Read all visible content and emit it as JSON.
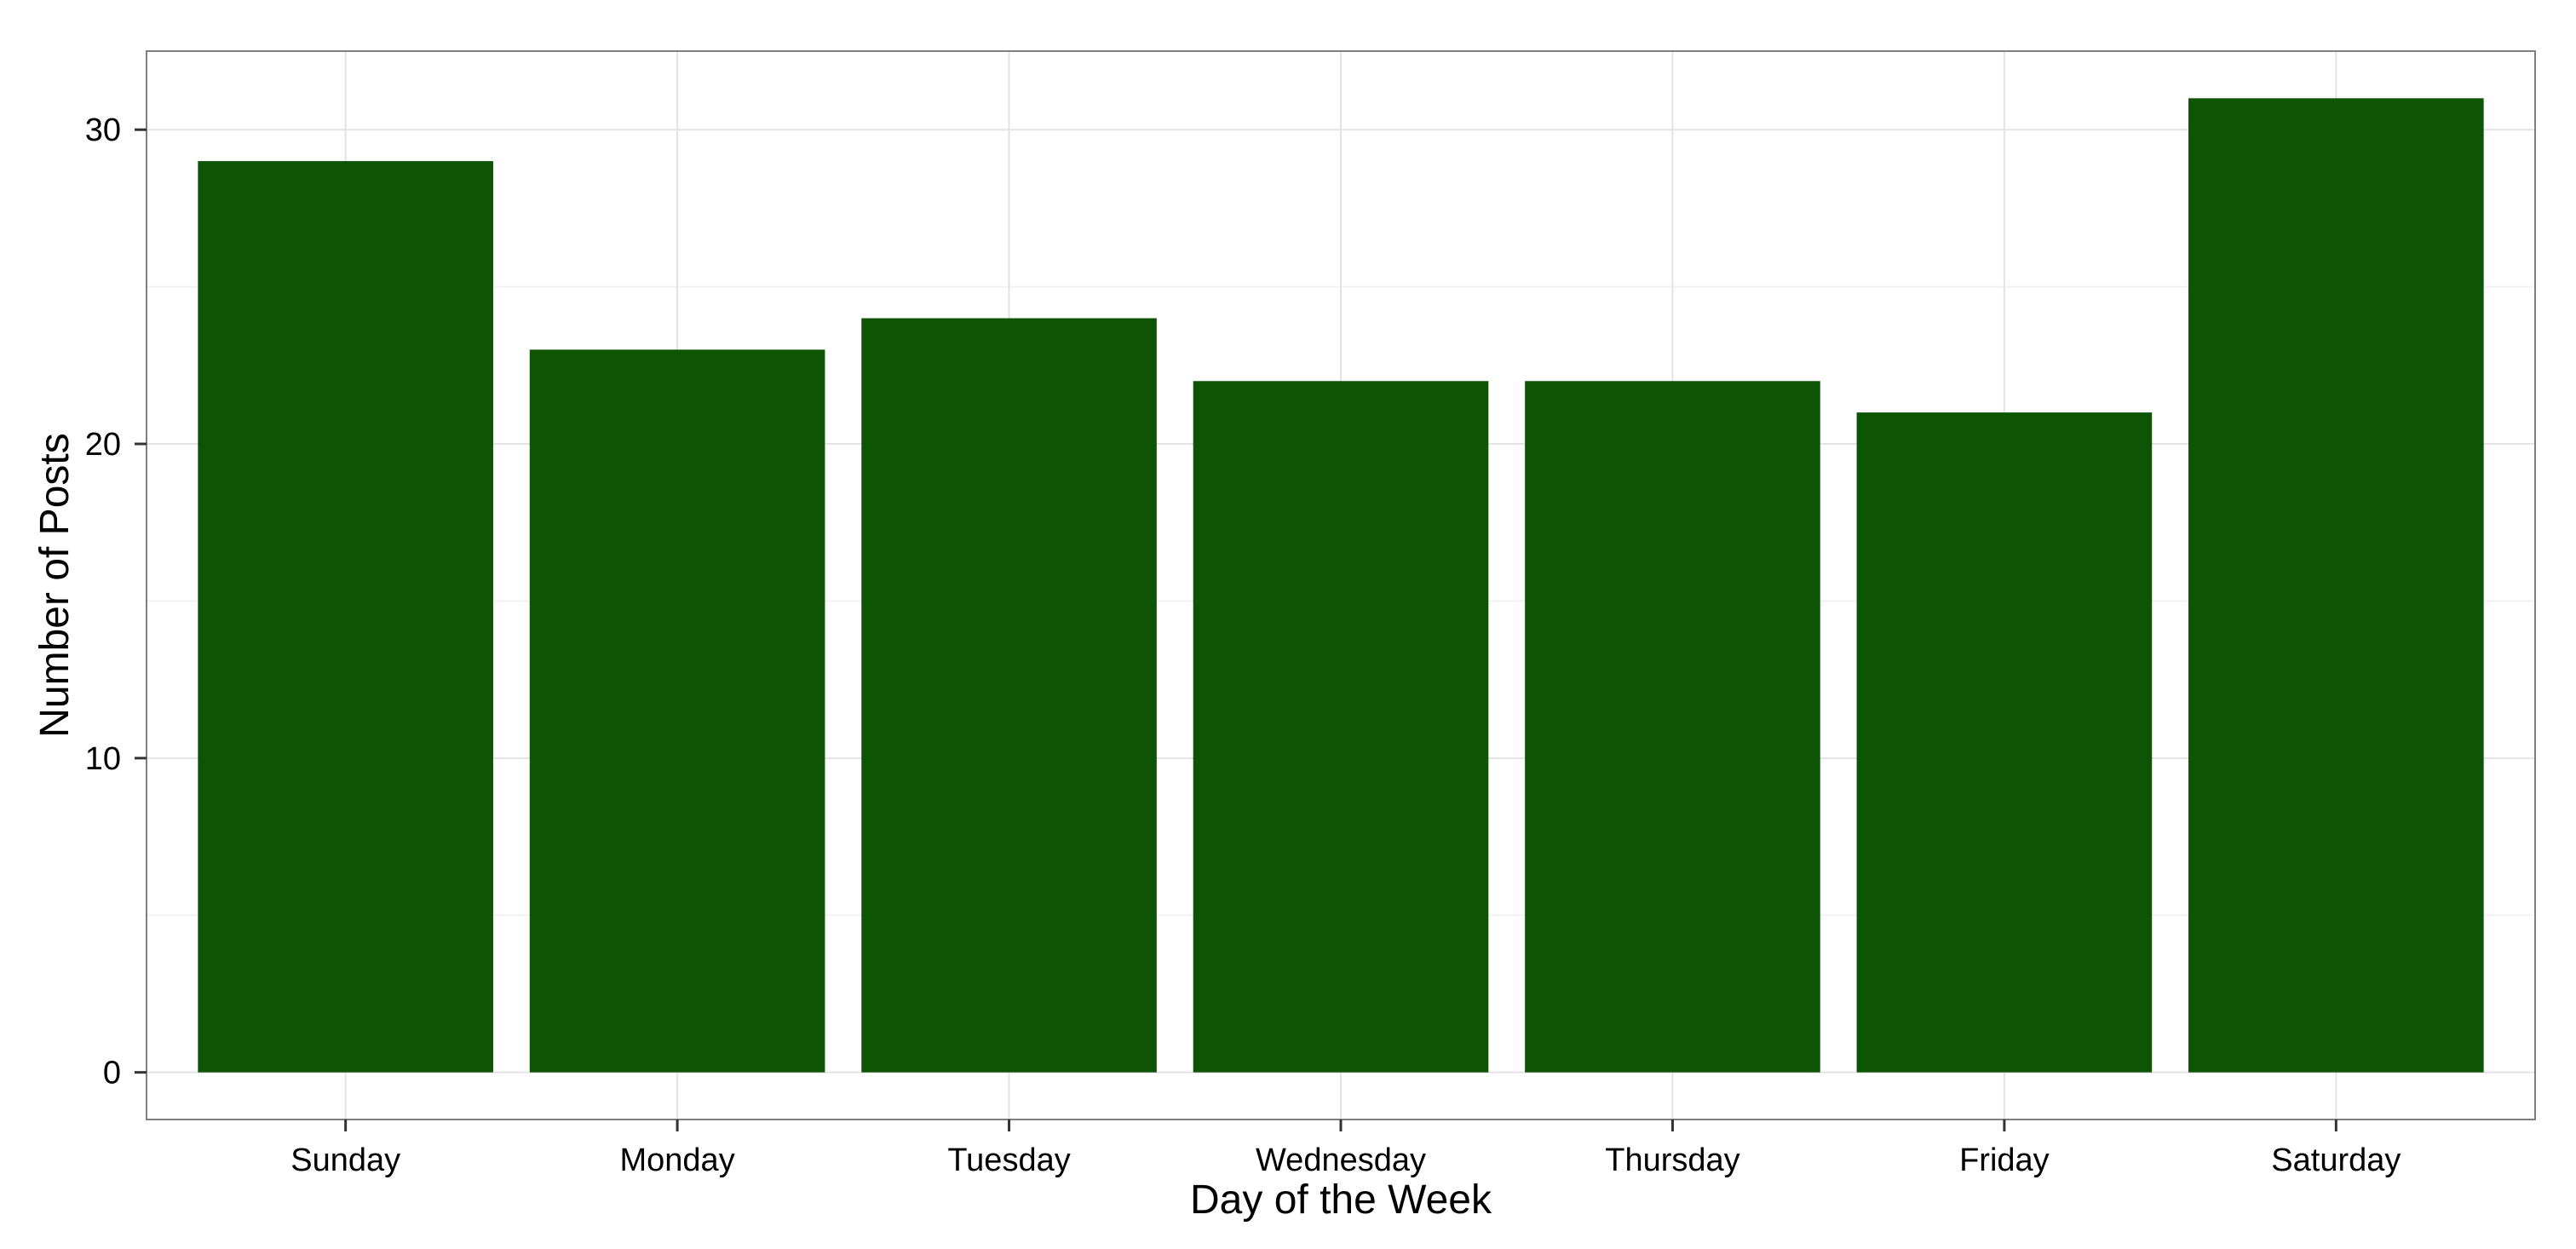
{
  "chart_data": {
    "type": "bar",
    "categories": [
      "Sunday",
      "Monday",
      "Tuesday",
      "Wednesday",
      "Thursday",
      "Friday",
      "Saturday"
    ],
    "values": [
      29,
      23,
      24,
      22,
      22,
      21,
      31
    ],
    "title": "",
    "xlabel": "Day of the Week",
    "ylabel": "Number of Posts",
    "ylim": [
      -1.5,
      32.5
    ],
    "yticks": [
      0,
      10,
      20,
      30
    ],
    "grid": true,
    "legend": "none",
    "colors": {
      "bar": "#0d5405",
      "panel_border": "#7f7f7f",
      "grid_major": "#e3e3e3",
      "grid_minor": "#f2f2f2"
    }
  }
}
